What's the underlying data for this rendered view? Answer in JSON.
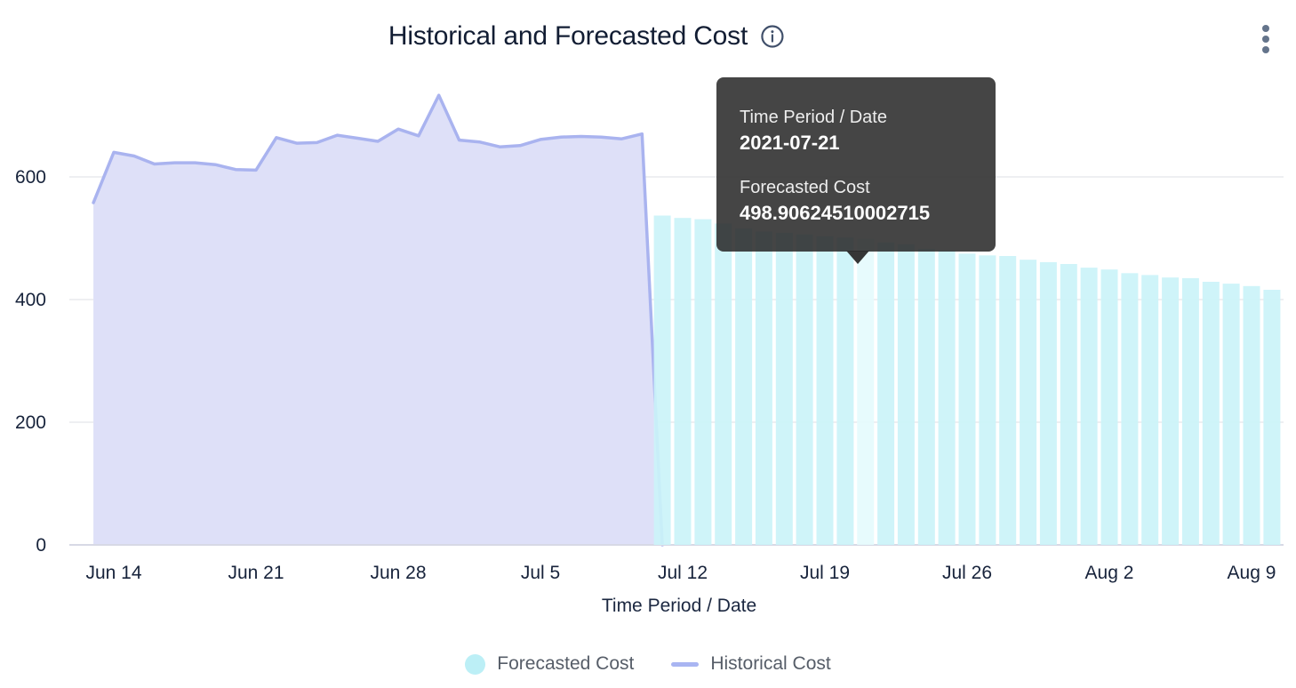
{
  "header": {
    "title": "Historical and Forecasted Cost"
  },
  "tooltip": {
    "date_label": "Time Period / Date",
    "date_value": "2021-07-21",
    "series_label": "Forecasted Cost",
    "series_value": "498.90624510002715"
  },
  "x_axis_title": "Time Period / Date",
  "legend": [
    {
      "label": "Forecasted Cost",
      "swatch": "circle",
      "color": "#bceff6"
    },
    {
      "label": "Historical Cost",
      "swatch": "line",
      "color": "#a9b5f2"
    }
  ],
  "colors": {
    "title_text": "#121d33",
    "axis_text": "#17233b",
    "legend_text": "#565d68",
    "gridline": "#e9eaee",
    "baseline": "#d7d9e5",
    "historical_fill": "#dee0f8",
    "historical_stroke": "#a9b3ef",
    "forecast_bar": "#cbf3f9",
    "forecast_bar_highlight": "#e5fbfd",
    "tooltip_bg": "#2b2b2b",
    "icon_gray": "#64748b"
  },
  "chart_data": {
    "type": "mixed",
    "title": "Historical and Forecasted Cost",
    "xlabel": "Time Period / Date",
    "ylabel": "",
    "ylim": [
      0,
      760
    ],
    "y_ticks": [
      0,
      200,
      400,
      600
    ],
    "x_ticks": [
      {
        "label": "Jun 14",
        "date": "2021-06-14"
      },
      {
        "label": "Jun 21",
        "date": "2021-06-21"
      },
      {
        "label": "Jun 28",
        "date": "2021-06-28"
      },
      {
        "label": "Jul 5",
        "date": "2021-07-05"
      },
      {
        "label": "Jul 12",
        "date": "2021-07-12"
      },
      {
        "label": "Jul 19",
        "date": "2021-07-19"
      },
      {
        "label": "Jul 26",
        "date": "2021-07-26"
      },
      {
        "label": "Aug 2",
        "date": "2021-08-02"
      },
      {
        "label": "Aug 9",
        "date": "2021-08-09"
      }
    ],
    "series": [
      {
        "name": "Historical Cost",
        "type": "area-line",
        "stroke": "#a9b3ef",
        "fill": "#dee0f8",
        "points": [
          [
            "2021-06-13",
            558
          ],
          [
            "2021-06-14",
            640
          ],
          [
            "2021-06-15",
            634
          ],
          [
            "2021-06-16",
            621
          ],
          [
            "2021-06-17",
            623
          ],
          [
            "2021-06-18",
            623
          ],
          [
            "2021-06-19",
            620
          ],
          [
            "2021-06-20",
            612
          ],
          [
            "2021-06-21",
            611
          ],
          [
            "2021-06-22",
            664
          ],
          [
            "2021-06-23",
            655
          ],
          [
            "2021-06-24",
            656
          ],
          [
            "2021-06-25",
            668
          ],
          [
            "2021-06-26",
            663
          ],
          [
            "2021-06-27",
            658
          ],
          [
            "2021-06-28",
            678
          ],
          [
            "2021-06-29",
            667
          ],
          [
            "2021-06-30",
            733
          ],
          [
            "2021-07-01",
            660
          ],
          [
            "2021-07-02",
            657
          ],
          [
            "2021-07-03",
            649
          ],
          [
            "2021-07-04",
            651
          ],
          [
            "2021-07-05",
            661
          ],
          [
            "2021-07-06",
            665
          ],
          [
            "2021-07-07",
            666
          ],
          [
            "2021-07-08",
            665
          ],
          [
            "2021-07-09",
            662
          ],
          [
            "2021-07-10",
            670
          ],
          [
            "2021-07-11",
            0
          ]
        ]
      },
      {
        "name": "Forecasted Cost",
        "type": "bar",
        "color": "#cbf3f9",
        "highlight_color": "#e5fbfd",
        "highlighted_date": "2021-07-21",
        "points": [
          [
            "2021-07-11",
            537
          ],
          [
            "2021-07-12",
            533
          ],
          [
            "2021-07-13",
            531
          ],
          [
            "2021-07-14",
            524
          ],
          [
            "2021-07-15",
            516
          ],
          [
            "2021-07-16",
            511
          ],
          [
            "2021-07-17",
            509
          ],
          [
            "2021-07-18",
            506
          ],
          [
            "2021-07-19",
            503
          ],
          [
            "2021-07-20",
            501
          ],
          [
            "2021-07-21",
            498.90624510002715
          ],
          [
            "2021-07-22",
            493
          ],
          [
            "2021-07-23",
            490
          ],
          [
            "2021-07-24",
            483
          ],
          [
            "2021-07-25",
            480
          ],
          [
            "2021-07-26",
            475
          ],
          [
            "2021-07-27",
            472
          ],
          [
            "2021-07-28",
            471
          ],
          [
            "2021-07-29",
            465
          ],
          [
            "2021-07-30",
            461
          ],
          [
            "2021-07-31",
            458
          ],
          [
            "2021-08-01",
            452
          ],
          [
            "2021-08-02",
            449
          ],
          [
            "2021-08-03",
            443
          ],
          [
            "2021-08-04",
            440
          ],
          [
            "2021-08-05",
            436
          ],
          [
            "2021-08-06",
            435
          ],
          [
            "2021-08-07",
            429
          ],
          [
            "2021-08-08",
            426
          ],
          [
            "2021-08-09",
            422
          ],
          [
            "2021-08-10",
            416
          ]
        ]
      }
    ],
    "legend_position": "bottom",
    "grid": "horizontal"
  }
}
